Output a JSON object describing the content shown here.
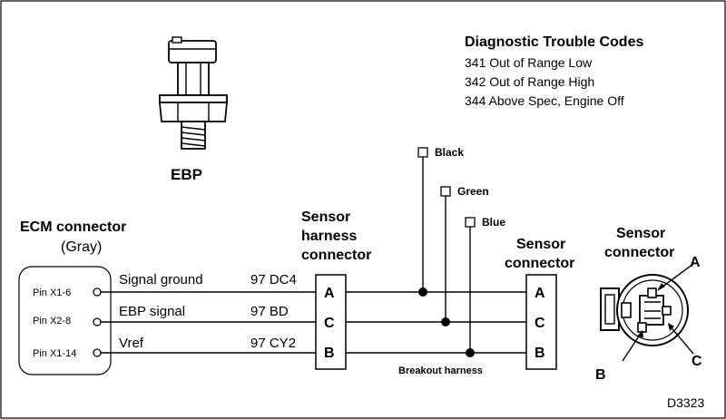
{
  "dtc": {
    "title": "Diagnostic Trouble Codes",
    "codes": [
      "341 Out of Range Low",
      "342 Out of Range High",
      "344 Above Spec, Engine Off"
    ]
  },
  "ebp_label": "EBP",
  "ecm": {
    "title": "ECM connector",
    "subtitle": "(Gray)",
    "pins": [
      "Pin X1-6",
      "Pin X2-8",
      "Pin X1-14"
    ]
  },
  "circuits": [
    {
      "signal": "Signal ground",
      "wire": "97 DC4",
      "pin": "A"
    },
    {
      "signal": "EBP signal",
      "wire": "97 BD",
      "pin": "C"
    },
    {
      "signal": "Vref",
      "wire": "97 CY2",
      "pin": "B"
    }
  ],
  "harness_connector": {
    "lines": [
      "Sensor",
      "harness",
      "connector"
    ]
  },
  "sensor_connector_mid": {
    "lines": [
      "Sensor",
      "connector"
    ]
  },
  "sensor_connector_right": {
    "lines": [
      "Sensor",
      "connector"
    ],
    "pin_labels": [
      "A",
      "B",
      "C"
    ]
  },
  "breakout": {
    "leads": [
      "Black",
      "Green",
      "Blue"
    ],
    "label": "Breakout harness"
  },
  "figure_id": "D3323"
}
